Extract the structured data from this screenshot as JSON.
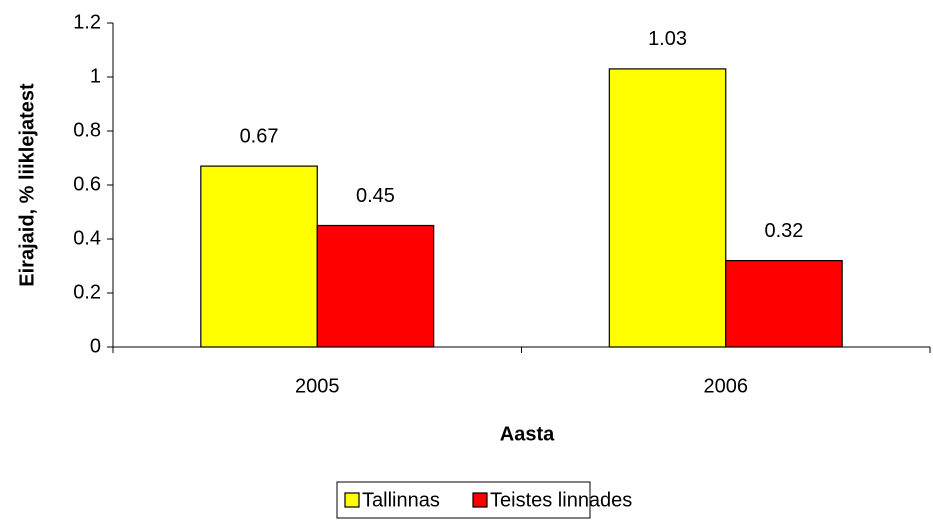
{
  "chart_data": {
    "type": "bar",
    "categories": [
      "2005",
      "2006"
    ],
    "series": [
      {
        "name": "Tallinnas",
        "color": "#ffff00",
        "values": [
          0.67,
          1.03
        ]
      },
      {
        "name": "Teistes linnades",
        "color": "#ff0000",
        "values": [
          0.45,
          0.32
        ]
      }
    ],
    "x_label": "Aasta",
    "y_label": "Eirajaid, % liiklejatest",
    "ylim": [
      0,
      1.2
    ],
    "yticks": [
      0,
      0.2,
      0.4,
      0.6,
      0.8,
      1,
      1.2
    ],
    "grid": false,
    "legend": "bottom"
  }
}
